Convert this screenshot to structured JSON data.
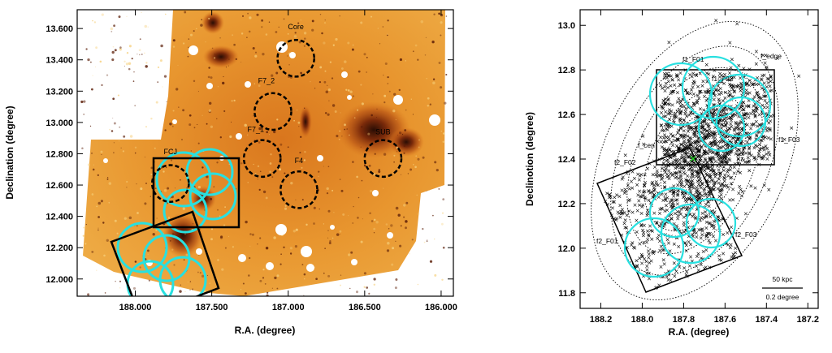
{
  "chart_data": [
    {
      "type": "image-map",
      "xlabel": "R.A. (degree)",
      "ylabel": "Declination (degree)",
      "xlim": [
        188.38,
        185.92
      ],
      "ylim": [
        11.89,
        13.72
      ],
      "xticks": [
        188.0,
        187.5,
        187.0,
        186.5,
        186.0
      ],
      "xtick_labels": [
        "188.000",
        "187.500",
        "187.000",
        "186.500",
        "186.000"
      ],
      "yticks": [
        12.0,
        12.2,
        12.4,
        12.6,
        12.8,
        13.0,
        13.2,
        13.4,
        13.6
      ],
      "ytick_labels": [
        "12.000",
        "12.200",
        "12.400",
        "12.600",
        "12.800",
        "13.000",
        "13.200",
        "13.400",
        "13.600"
      ],
      "fields": [
        {
          "name": "Core",
          "ra": 186.95,
          "dec": 13.41,
          "r": 0.12
        },
        {
          "name": "F7_2",
          "ra": 187.1,
          "dec": 13.07,
          "r": 0.12
        },
        {
          "name": "F7_1",
          "ra": 187.17,
          "dec": 12.77,
          "r": 0.12
        },
        {
          "name": "F4",
          "ra": 186.93,
          "dec": 12.57,
          "r": 0.12
        },
        {
          "name": "SUB",
          "ra": 186.38,
          "dec": 12.77,
          "r": 0.12
        },
        {
          "name": "FCJ",
          "ra": 187.77,
          "dec": 12.61,
          "r": 0.12
        }
      ],
      "annotations": [
        "Core",
        "F7_2",
        "F7_1",
        "F4",
        "SUB",
        "FCJ"
      ]
    },
    {
      "type": "scatter",
      "xlabel": "R.A. (degree)",
      "ylabel": "Declinotion (degree)",
      "xlim": [
        188.3,
        187.15
      ],
      "ylim": [
        11.73,
        13.07
      ],
      "xticks": [
        188.2,
        188.0,
        187.8,
        187.6,
        187.4,
        187.2
      ],
      "xtick_labels": [
        "188.2",
        "188.0",
        "187.8",
        "187.6",
        "187.4",
        "187.2"
      ],
      "yticks": [
        11.8,
        12.0,
        12.2,
        12.4,
        12.6,
        12.8,
        13.0
      ],
      "ytick_labels": [
        "11.8",
        "12.0",
        "12.2",
        "12.4",
        "12.6",
        "12.8",
        "13.0"
      ],
      "center": {
        "ra": 187.705,
        "dec": 12.39
      },
      "field_labels": [
        "f1_F01",
        "f1_F02",
        "f_edge",
        "f_cen",
        "f1_F03",
        "f2_F02",
        "f2_F01",
        "f2_F03"
      ],
      "scale_bar": {
        "top": "50 kpc",
        "bottom": "0.2 degree"
      }
    }
  ]
}
